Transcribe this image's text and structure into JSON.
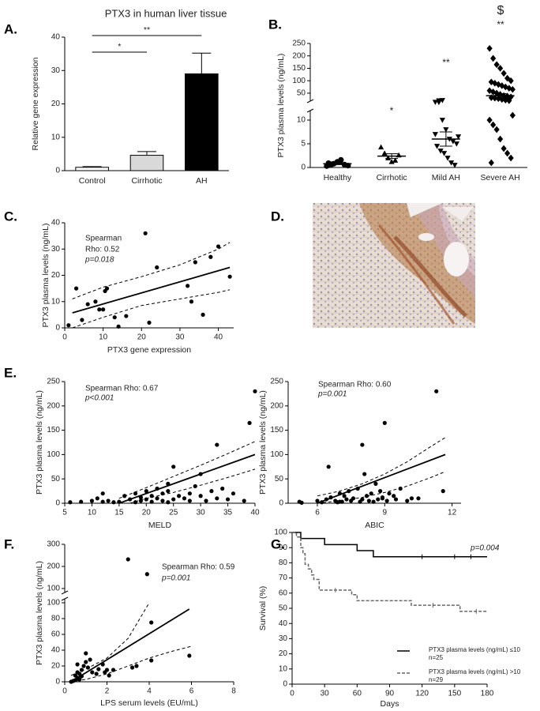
{
  "chart_data": [
    {
      "type": "bar",
      "panel": "A.",
      "title": "PTX3 in human liver tissue",
      "ylabel": "Relative gene expression",
      "categories": [
        "Control",
        "Cirrhotic",
        "AH"
      ],
      "values": [
        1,
        4.6,
        29
      ],
      "errors": [
        0.2,
        1.1,
        6.2
      ],
      "colors": [
        "#ffffff",
        "#d9d9d9",
        "#000000"
      ],
      "ylim": [
        0,
        40
      ],
      "yticks": [
        0,
        10,
        20,
        30,
        40
      ],
      "annotations": [
        "**",
        "*"
      ]
    },
    {
      "type": "strip",
      "panel": "B.",
      "ylabel": "PTX3 plasma levels (ng/mL)",
      "categories": [
        "Healthy",
        "Cirrhotic",
        "Mild AH",
        "Severe AH"
      ],
      "markers": [
        "circle",
        "triangle",
        "triangle-down",
        "diamond"
      ],
      "points": [
        [
          0.3,
          0.5,
          0.8,
          1.2,
          1.6,
          0.6,
          0.4,
          0.9,
          0.7
        ],
        [
          4.3,
          3.0,
          2.0,
          1.2,
          1.5,
          2.6
        ],
        [
          14,
          13,
          10,
          8,
          6,
          5.5,
          5,
          4.5,
          3.5,
          3,
          2,
          1,
          0.5,
          6.5,
          7,
          20,
          21
        ],
        [
          230,
          190,
          165,
          150,
          130,
          110,
          100,
          95,
          90,
          85,
          80,
          75,
          70,
          65,
          60,
          55,
          50,
          45,
          40,
          38,
          35,
          32,
          30,
          28,
          25,
          22,
          20,
          11,
          10,
          9,
          8,
          6,
          4,
          3,
          2,
          1
        ]
      ],
      "means": [
        0.8,
        2.4,
        6,
        40
      ],
      "sems": [
        0.2,
        0.5,
        1.5,
        8
      ],
      "ylim": [
        0,
        250
      ],
      "axis_break": [
        12,
        18
      ],
      "yticks": [
        0,
        5,
        10
      ],
      "yticks_upper": [
        50,
        100,
        150,
        200,
        250
      ],
      "annotations": [
        "*",
        "**",
        "**",
        "$"
      ]
    },
    {
      "type": "scatter",
      "panel": "C.",
      "xlabel": "PTX3 gene expression",
      "ylabel": "PTX3 plasma levels (ng/mL)",
      "x": [
        1,
        3,
        4.5,
        6,
        8,
        9,
        10,
        10.5,
        11,
        13,
        14,
        16,
        21,
        22,
        24,
        32,
        33,
        34,
        36,
        38,
        40,
        43
      ],
      "y": [
        1,
        15,
        3,
        9,
        10,
        7,
        7,
        14,
        15,
        4,
        0.5,
        4.5,
        36,
        2,
        23,
        16,
        10,
        25,
        5,
        27,
        31,
        19.5
      ],
      "fit_x": [
        2,
        43
      ],
      "fit_y": [
        5.7,
        23
      ],
      "ci_upper_x": [
        2,
        10,
        20,
        30,
        40,
        43
      ],
      "ci_upper": [
        11,
        15.5,
        19.5,
        24,
        30,
        32.5
      ],
      "ci_lower_x": [
        2,
        10,
        20,
        30,
        40,
        43
      ],
      "ci_lower": [
        0,
        4,
        8.5,
        11,
        13.5,
        14.5
      ],
      "xlim": [
        0,
        44
      ],
      "xticks": [
        0,
        10,
        20,
        30,
        40
      ],
      "ylim": [
        0,
        40
      ],
      "yticks": [
        0,
        10,
        20,
        30,
        40
      ],
      "annotations": [
        "Spearman",
        "Rho: 0.52",
        "p=0.018"
      ]
    },
    {
      "type": "image",
      "panel": "D."
    },
    {
      "type": "scatter",
      "panel": "E.",
      "xlabel": "MELD",
      "ylabel": "PTX3 plasma levels (ng/mL)",
      "x": [
        6,
        8,
        10,
        11,
        12,
        13,
        15,
        16,
        17,
        18,
        18,
        19,
        19,
        20,
        20,
        21,
        21,
        22,
        22,
        23,
        23,
        24,
        24,
        25,
        25,
        26,
        27,
        28,
        28,
        29,
        30,
        30,
        31,
        32,
        33,
        33,
        34,
        35,
        36,
        38,
        39,
        40,
        12,
        14,
        24
      ],
      "y": [
        2,
        3,
        5,
        10,
        20,
        5,
        3,
        15,
        8,
        2,
        20,
        5,
        12,
        8,
        25,
        3,
        15,
        10,
        30,
        5,
        20,
        25,
        40,
        8,
        75,
        15,
        10,
        5,
        20,
        35,
        15,
        60,
        5,
        25,
        120,
        10,
        30,
        8,
        20,
        5,
        165,
        230,
        3,
        2,
        2
      ],
      "fit_x": [
        15,
        40
      ],
      "fit_y": [
        0,
        100
      ],
      "ci_upper_x": [
        15,
        20,
        25,
        30,
        35,
        40
      ],
      "ci_upper": [
        10,
        32,
        55,
        78,
        102,
        127
      ],
      "ci_lower_x": [
        17,
        20,
        25,
        30,
        35,
        40
      ],
      "ci_lower": [
        0,
        10,
        22,
        37,
        53,
        70
      ],
      "xlim": [
        5,
        40
      ],
      "xticks": [
        5,
        10,
        15,
        20,
        25,
        30,
        35,
        40
      ],
      "ylim": [
        0,
        250
      ],
      "yticks": [
        0,
        50,
        100,
        150,
        200,
        250
      ],
      "annotations": [
        "Spearman Rho: 0.67",
        "p<0.001"
      ]
    },
    {
      "type": "scatter",
      "xlabel": "ABIC",
      "ylabel": "PTX3 plasma levels (ng/mL)",
      "x": [
        5.2,
        5.3,
        6,
        6.2,
        6.4,
        6.5,
        6.6,
        6.8,
        7,
        7,
        7.2,
        7.3,
        7.4,
        7.5,
        7.6,
        7.8,
        7.9,
        8,
        8,
        8.1,
        8.2,
        8.3,
        8.4,
        8.5,
        8.6,
        8.7,
        8.8,
        8.9,
        9,
        9.1,
        9.2,
        9.4,
        9.5,
        9.7,
        10,
        10.2,
        10.5,
        11.3,
        11.6,
        7.1,
        6.9,
        8.9
      ],
      "y": [
        3,
        1,
        5,
        2,
        8,
        75,
        12,
        5,
        20,
        3,
        15,
        8,
        25,
        5,
        10,
        30,
        3,
        120,
        8,
        60,
        15,
        5,
        20,
        3,
        40,
        8,
        25,
        10,
        165,
        5,
        20,
        15,
        8,
        30,
        5,
        10,
        10,
        230,
        25,
        3,
        2,
        12
      ],
      "fit_x": [
        6,
        11.7
      ],
      "fit_y": [
        0,
        100
      ],
      "ci_upper_x": [
        6,
        7,
        8,
        9,
        10,
        11,
        11.7
      ],
      "ci_upper": [
        15,
        25,
        40,
        60,
        85,
        115,
        135
      ],
      "ci_lower_x": [
        6,
        7,
        8,
        9,
        10,
        11,
        11.7
      ],
      "ci_lower": [
        0,
        5,
        12,
        22,
        35,
        52,
        65
      ],
      "xlim": [
        4.7,
        12.4
      ],
      "xticks": [
        6,
        9,
        12
      ],
      "ylim": [
        0,
        250
      ],
      "yticks": [
        0,
        50,
        100,
        150,
        200,
        250
      ],
      "annotations": [
        "Spearman Rho: 0.60",
        "p=0.001"
      ]
    },
    {
      "type": "scatter",
      "panel": "F.",
      "xlabel": "LPS serum levels (EU/mL)",
      "ylabel": "PTX3 plasma levels (ng/mL)",
      "x": [
        0.5,
        0.6,
        0.7,
        0.8,
        0.9,
        1,
        0.4,
        0.3,
        0.5,
        0.6,
        0.7,
        0.8,
        1.1,
        1.2,
        1.3,
        1.5,
        1.6,
        1.8,
        1.9,
        2.0,
        2.1,
        2.3,
        1.0,
        0.6,
        3.0,
        3.2,
        3.4,
        3.9,
        4.1,
        4.1,
        5.9
      ],
      "y": [
        2,
        5,
        10,
        15,
        20,
        25,
        1,
        0,
        8,
        12,
        3,
        7,
        18,
        28,
        12,
        10,
        16,
        22,
        12,
        15,
        8,
        15,
        36,
        22,
        232,
        18,
        20,
        165,
        75,
        27,
        33
      ],
      "fit_x": [
        0.3,
        5.9
      ],
      "fit_y": [
        0,
        92
      ],
      "ci_upper_x": [
        0.3,
        1,
        2,
        3,
        4
      ],
      "ci_upper": [
        8,
        16,
        30,
        55,
        100
      ],
      "ci_lower_x": [
        0.3,
        1,
        2,
        3,
        4,
        5,
        6
      ],
      "ci_lower": [
        0,
        3,
        10,
        20,
        30,
        38,
        45
      ],
      "xlim": [
        0,
        8
      ],
      "xticks": [
        0,
        2,
        4,
        6,
        8
      ],
      "ylim": [
        0,
        300
      ],
      "axis_break": [
        105,
        82
      ],
      "yticks": [
        0,
        20,
        40,
        60,
        80,
        100
      ],
      "yticks_upper": [
        100,
        200,
        300
      ],
      "annotations": [
        "Spearman Rho: 0.59",
        "p=0.001"
      ]
    },
    {
      "type": "survival",
      "panel": "G.",
      "xlabel": "Days",
      "ylabel": "Survival (%)",
      "series": [
        {
          "name": "PTX3 plasma levels (ng/mL) ≤10 n=25",
          "color": "#000000",
          "line_style": "solid",
          "x": [
            0,
            8,
            30,
            60,
            75,
            180
          ],
          "values": [
            100,
            96,
            92,
            88,
            84,
            84
          ],
          "censored": [
            120,
            150,
            165
          ]
        },
        {
          "name": "PTX3 plasma levels (ng/mL) >10 n=29",
          "color": "#666666",
          "line_style": "dashed",
          "x": [
            0,
            4,
            8,
            10,
            12,
            15,
            18,
            20,
            25,
            45,
            55,
            60,
            100,
            110,
            150,
            155,
            180
          ],
          "values": [
            100,
            97,
            90,
            86,
            79,
            76,
            72,
            69,
            62,
            62,
            59,
            55,
            55,
            52,
            52,
            48,
            48
          ],
          "censored": [
            40,
            130,
            170
          ]
        }
      ],
      "xlim": [
        0,
        180
      ],
      "xticks": [
        0,
        30,
        60,
        90,
        120,
        150,
        180
      ],
      "ylim": [
        0,
        100
      ],
      "yticks": [
        0,
        10,
        20,
        30,
        40,
        50,
        60,
        70,
        80,
        90,
        100
      ],
      "annotations": [
        "p=0.004"
      ]
    }
  ]
}
